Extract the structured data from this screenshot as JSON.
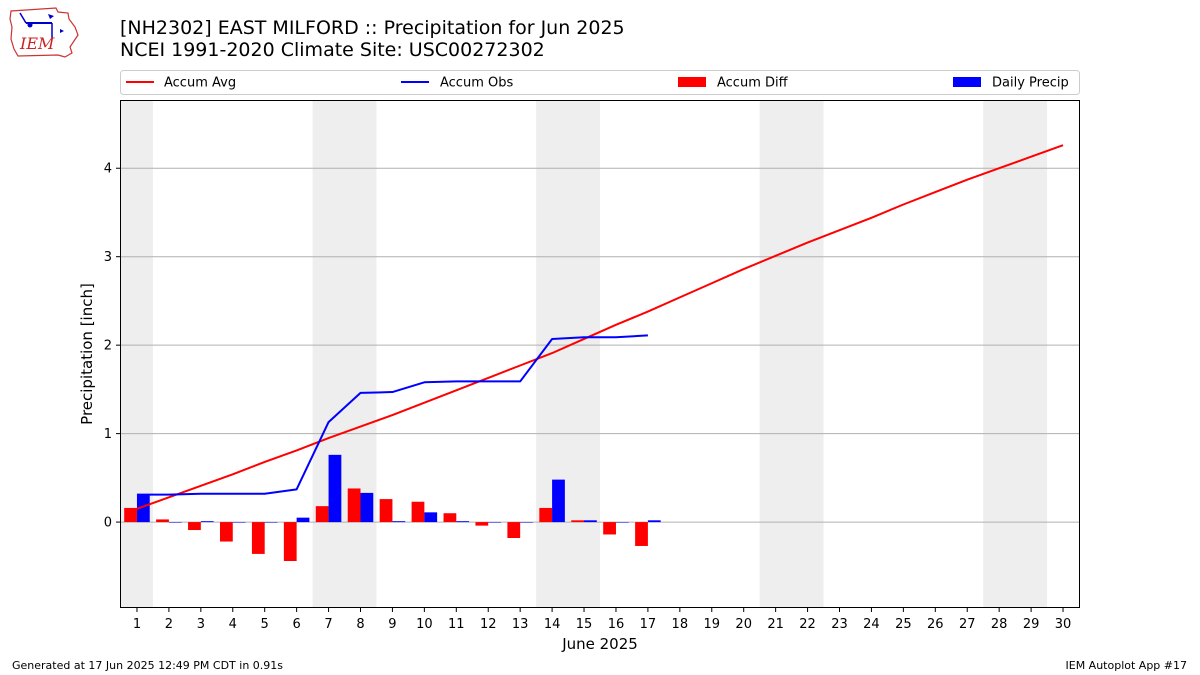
{
  "title": "[NH2302] EAST MILFORD :: Precipitation for Jun 2025",
  "subtitle": "NCEI 1991-2020 Climate Site: USC00272302",
  "logo_text": "IEM",
  "footer": {
    "left": "Generated at 17 Jun 2025 12:49 PM CDT in 0.91s",
    "right": "IEM Autoplot App #17"
  },
  "colors": {
    "avg": "#ff0000",
    "obs": "#0000ff",
    "diff": "#ff0000",
    "daily": "#0000ff",
    "weekend": "#eeeeee",
    "grid": "#b0b0b0"
  },
  "chart_data": {
    "type": "bar",
    "xlabel": "June 2025",
    "ylabel": "Precipitation [inch]",
    "xlim": [
      0.5,
      30.5
    ],
    "ylim": [
      -0.96,
      4.76
    ],
    "yticks": [
      0,
      1,
      2,
      3,
      4
    ],
    "grid": true,
    "legend_position": "top",
    "legend": [
      "Accum Avg",
      "Accum Obs",
      "Accum Diff",
      "Daily Precip"
    ],
    "weekend_shading": [
      [
        0.5,
        1.5
      ],
      [
        6.5,
        8.5
      ],
      [
        13.5,
        15.5
      ],
      [
        20.5,
        22.5
      ],
      [
        27.5,
        29.5
      ]
    ],
    "days": [
      1,
      2,
      3,
      4,
      5,
      6,
      7,
      8,
      9,
      10,
      11,
      12,
      13,
      14,
      15,
      16,
      17,
      18,
      19,
      20,
      21,
      22,
      23,
      24,
      25,
      26,
      27,
      28,
      29,
      30
    ],
    "series": [
      {
        "name": "Accum Avg",
        "kind": "line",
        "color": "#ff0000",
        "values": [
          0.15,
          0.28,
          0.41,
          0.54,
          0.68,
          0.81,
          0.95,
          1.08,
          1.21,
          1.35,
          1.49,
          1.63,
          1.77,
          1.91,
          2.07,
          2.23,
          2.38,
          2.54,
          2.7,
          2.86,
          3.01,
          3.16,
          3.3,
          3.44,
          3.59,
          3.73,
          3.87,
          4.0,
          4.13,
          4.26
        ]
      },
      {
        "name": "Accum Obs",
        "kind": "line",
        "color": "#0000ff",
        "values": [
          0.31,
          0.31,
          0.32,
          0.32,
          0.32,
          0.37,
          1.13,
          1.46,
          1.47,
          1.58,
          1.59,
          1.59,
          1.59,
          2.07,
          2.09,
          2.09,
          2.11
        ]
      },
      {
        "name": "Accum Diff",
        "kind": "bar",
        "color": "#ff0000",
        "values": [
          0.16,
          0.03,
          -0.09,
          -0.22,
          -0.36,
          -0.44,
          0.18,
          0.38,
          0.26,
          0.23,
          0.1,
          -0.04,
          -0.18,
          0.16,
          0.02,
          -0.14,
          -0.27
        ]
      },
      {
        "name": "Daily Precip",
        "kind": "bar",
        "color": "#0000ff",
        "values": [
          0.31,
          0.0,
          0.01,
          0.0,
          0.0,
          0.05,
          0.76,
          0.33,
          0.01,
          0.11,
          0.01,
          0.0,
          0.0,
          0.48,
          0.02,
          0.0,
          0.02
        ]
      }
    ]
  }
}
